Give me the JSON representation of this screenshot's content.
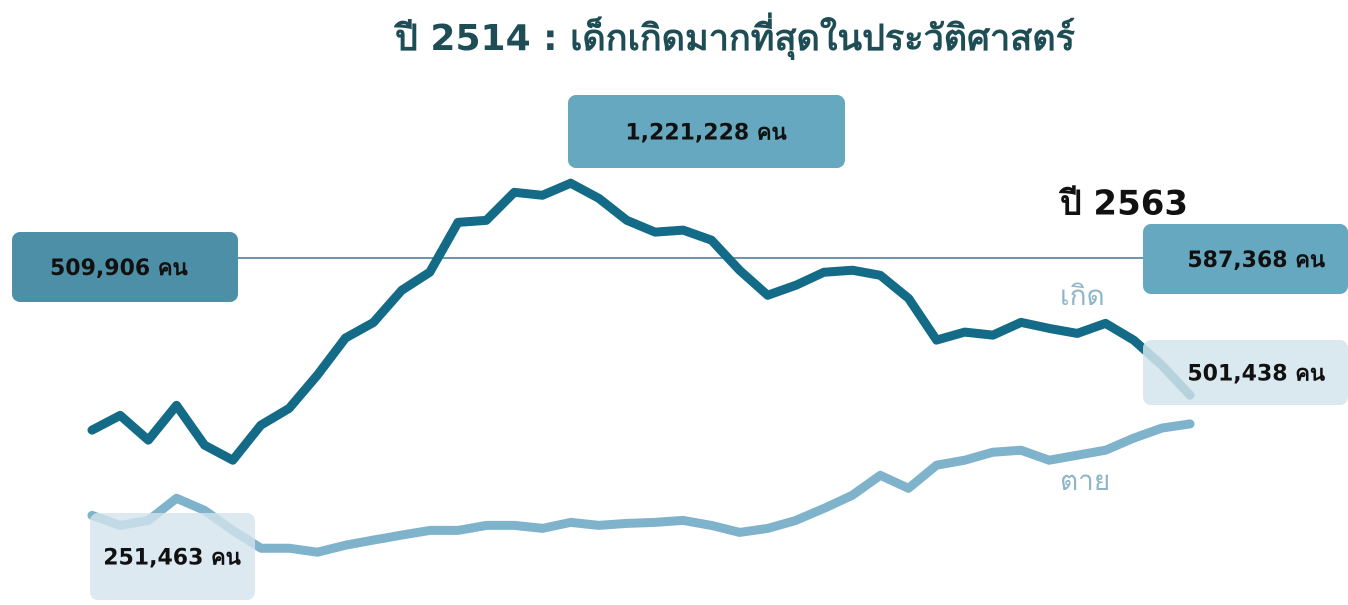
{
  "title": "ปี 2514 : เด็กเกิดมากที่สุดในประวัติศาสตร์",
  "chart_data": {
    "type": "line",
    "ylim": [
      -25000,
      1470000
    ],
    "series": [
      {
        "name": "เกิด",
        "color": "#136b87",
        "values": [
          483000,
          527000,
          453000,
          557000,
          438000,
          393000,
          498000,
          548000,
          647000,
          758000,
          805000,
          901000,
          955000,
          1104000,
          1110000,
          1194000,
          1185000,
          1221228,
          1176000,
          1110000,
          1075000,
          1081000,
          1051000,
          961000,
          886000,
          916000,
          955000,
          961000,
          946000,
          877000,
          752000,
          776000,
          767000,
          805000,
          787000,
          772000,
          802000,
          752000,
          677000,
          587368
        ]
      },
      {
        "name": "ตาย",
        "color": "#7fb3cb",
        "values": [
          228000,
          198000,
          213000,
          279000,
          243000,
          183000,
          130000,
          130000,
          118000,
          139000,
          154000,
          169000,
          183000,
          183000,
          198000,
          198000,
          189000,
          207000,
          198000,
          204000,
          207000,
          213000,
          198000,
          177000,
          189000,
          213000,
          249000,
          288000,
          348000,
          309000,
          378000,
          393000,
          417000,
          423000,
          393000,
          408000,
          423000,
          459000,
          489000,
          501438
        ]
      }
    ],
    "annotations": [
      {
        "value": 509906,
        "label": "509,906 คน"
      },
      {
        "value": 1221228,
        "label": "1,221,228 คน"
      },
      {
        "value": 587368,
        "label": "587,368 คน"
      },
      {
        "value": 501438,
        "label": "501,438 คน"
      },
      {
        "value": 251463,
        "label": "251,463 คน"
      }
    ],
    "year_label": "ปี 2563"
  }
}
